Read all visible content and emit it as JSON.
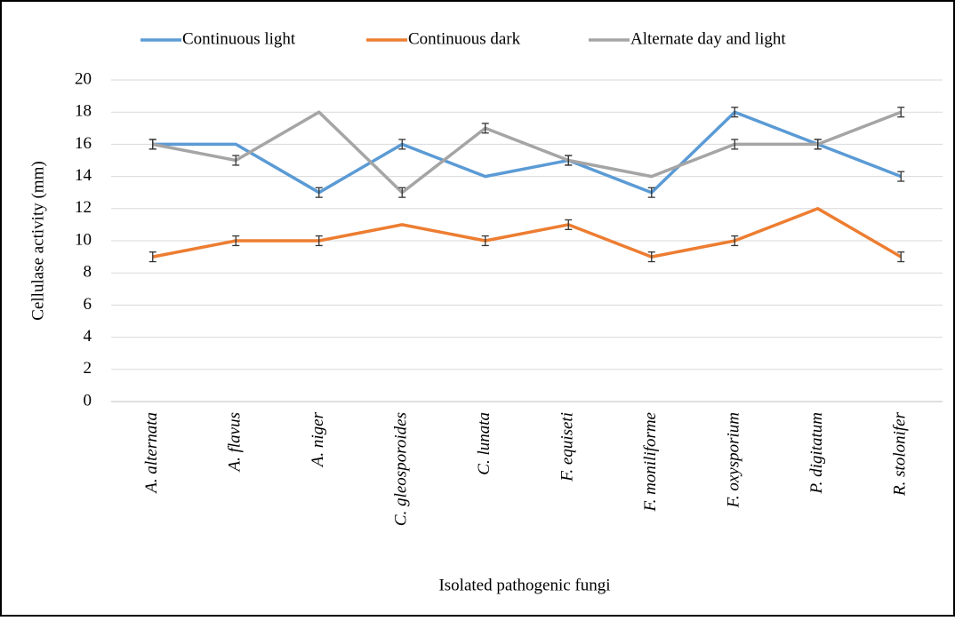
{
  "chart_data": {
    "type": "line",
    "x_label": "Isolated pathogenic fungi",
    "y_label": "Cellulase activity (mm)",
    "categories": [
      "A. alternata",
      "A. flavus",
      "A. niger",
      "C. gleosporoides",
      "C. lunata",
      "F. equiseti",
      "F. moniliforme",
      "F. oxysporium",
      "P. digitatum",
      "R. stolonifer"
    ],
    "series": [
      {
        "name": "Continuous light",
        "color": "#5b9bd5",
        "values": [
          16,
          16,
          13,
          16,
          14,
          15,
          13,
          18,
          16,
          14
        ],
        "errors": [
          0.3,
          null,
          0.3,
          0.3,
          null,
          0.3,
          0.3,
          0.3,
          0.3,
          0.3
        ]
      },
      {
        "name": "Continuous dark",
        "color": "#ed7d31",
        "values": [
          9,
          10,
          10,
          11,
          10,
          11,
          9,
          10,
          12,
          9
        ],
        "errors": [
          0.3,
          0.3,
          0.3,
          null,
          0.3,
          0.3,
          0.3,
          0.3,
          null,
          0.3
        ]
      },
      {
        "name": "Alternate day and light",
        "color": "#a5a5a5",
        "values": [
          16,
          15,
          18,
          13,
          17,
          15,
          14,
          16,
          16,
          18
        ],
        "errors": [
          0.3,
          0.3,
          null,
          0.3,
          0.3,
          0.3,
          null,
          0.3,
          0.3,
          0.3
        ]
      }
    ],
    "ylim": [
      0,
      20
    ],
    "yticks": [
      0,
      2,
      4,
      6,
      8,
      10,
      12,
      14,
      16,
      18,
      20
    ],
    "grid": true,
    "legend": "top"
  }
}
